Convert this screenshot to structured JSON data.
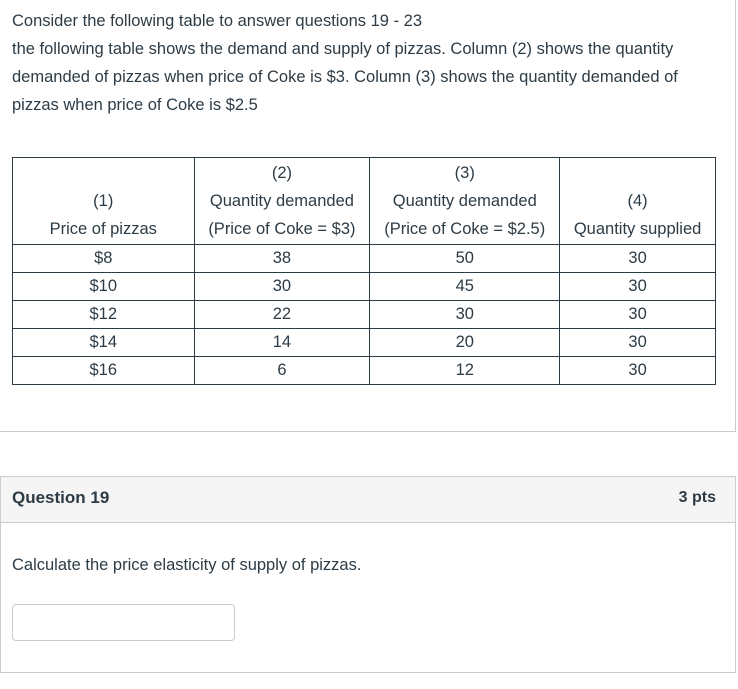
{
  "intro": {
    "line1": "Consider the following table to answer questions 19 - 23",
    "line2": "the following table shows the demand and supply of pizzas. Column (2) shows the quantity demanded of pizzas when price of Coke is $3. Column (3) shows the quantity demanded of pizzas when price of Coke is $2.5"
  },
  "table": {
    "headers": [
      {
        "num": "(1)",
        "line1": "",
        "line2": "Price of pizzas"
      },
      {
        "num": "(2)",
        "line1": "Quantity demanded",
        "line2": "(Price of Coke = $3)"
      },
      {
        "num": "(3)",
        "line1": "Quantity demanded",
        "line2": "(Price of Coke = $2.5)"
      },
      {
        "num": "(4)",
        "line1": "",
        "line2": "Quantity supplied"
      }
    ],
    "rows": [
      [
        "$8",
        "38",
        "50",
        "30"
      ],
      [
        "$10",
        "30",
        "45",
        "30"
      ],
      [
        "$12",
        "22",
        "30",
        "30"
      ],
      [
        "$14",
        "14",
        "20",
        "30"
      ],
      [
        "$16",
        "6",
        "12",
        "30"
      ]
    ]
  },
  "question": {
    "title": "Question 19",
    "points": "3 pts",
    "text": "Calculate the price elasticity of supply of pizzas.",
    "answer_value": ""
  }
}
